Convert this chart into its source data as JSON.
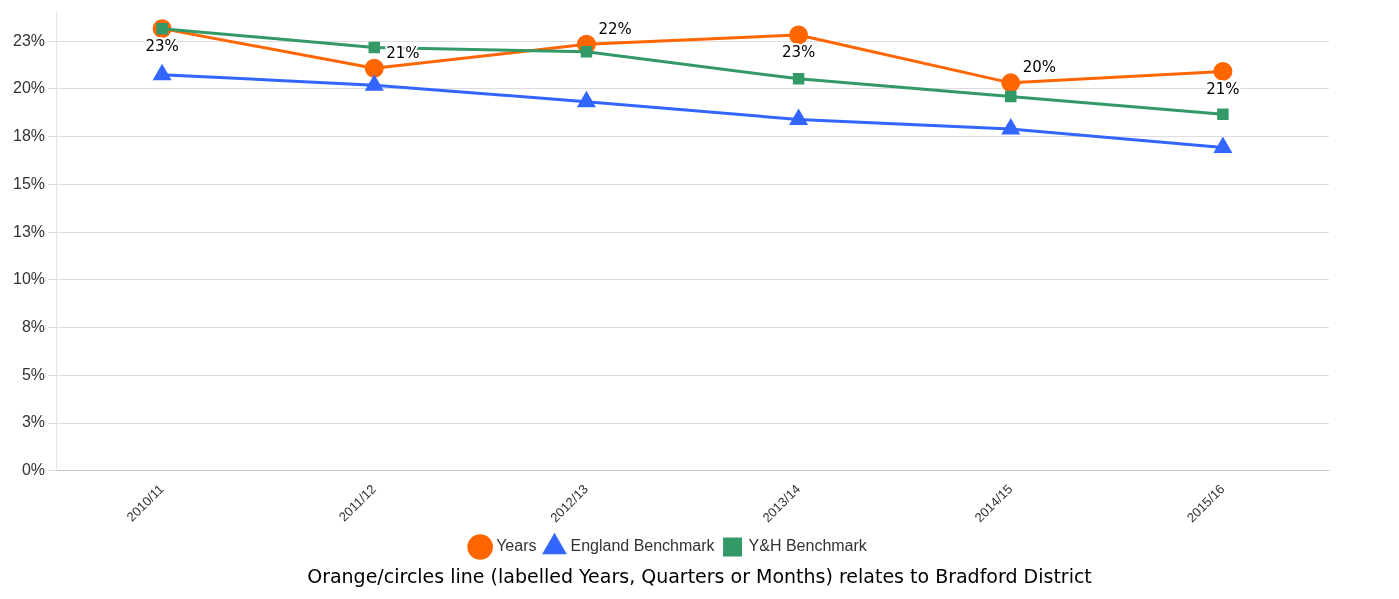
{
  "chart_data": {
    "type": "line",
    "categories": [
      "2010/11",
      "2011/12",
      "2012/13",
      "2013/14",
      "2014/15",
      "2015/16"
    ],
    "series": [
      {
        "name": "Years",
        "color": "#ff6600",
        "marker": "circle",
        "values": [
          23.16,
          21.08,
          22.34,
          22.83,
          20.32,
          20.92
        ],
        "value_labels": [
          "23%",
          "21%",
          "22%",
          "23%",
          "20%",
          "21%"
        ]
      },
      {
        "name": "England Benchmark",
        "color": "#3366ff",
        "marker": "triangle",
        "values": [
          20.75,
          20.2,
          19.33,
          18.4,
          17.9,
          16.93
        ]
      },
      {
        "name": "Y&H Benchmark",
        "color": "#339966",
        "marker": "square",
        "values": [
          23.16,
          22.17,
          21.95,
          20.53,
          19.6,
          18.68
        ]
      }
    ],
    "ylim": [
      0,
      24
    ],
    "yticks": [
      {
        "value": 0,
        "label": "0%"
      },
      {
        "value": 2.5,
        "label": "3%"
      },
      {
        "value": 5,
        "label": "5%"
      },
      {
        "value": 7.5,
        "label": "8%"
      },
      {
        "value": 10,
        "label": "10%"
      },
      {
        "value": 12.5,
        "label": "13%"
      },
      {
        "value": 15,
        "label": "15%"
      },
      {
        "value": 17.5,
        "label": "18%"
      },
      {
        "value": 20,
        "label": "20%"
      },
      {
        "value": 22.5,
        "label": "23%"
      }
    ],
    "grid": "y",
    "legend": "bottom",
    "annotations": [
      "Orange/circles line (labelled Years, Quarters or Months) relates to Bradford District"
    ]
  }
}
